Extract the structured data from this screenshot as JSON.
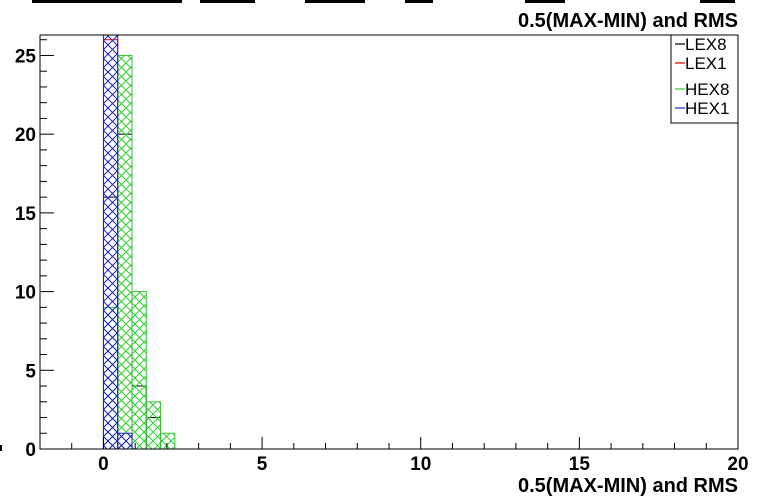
{
  "chart_data": {
    "type": "bar",
    "title": "",
    "top_label": "0.5(MAX-MIN) and RMS",
    "xlabel": "0.5(MAX-MIN) and RMS",
    "ylabel": "",
    "xlim": [
      -2,
      20
    ],
    "ylim": [
      0,
      26.3
    ],
    "bin_width": 0.45,
    "xticks": [
      0,
      5,
      10,
      15,
      20
    ],
    "xtick_labels": [
      "0",
      "5",
      "10",
      "15",
      "20"
    ],
    "yticks": [
      5,
      10,
      15,
      20,
      25
    ],
    "ytick_labels": [
      "5",
      "10",
      "15",
      "20",
      "25"
    ],
    "grid": false,
    "legend_position": "top-right",
    "series": [
      {
        "name": "LEX8",
        "color": "#000000",
        "hatched": false,
        "bin_edges": [
          0,
          0.45,
          0.9,
          1.35,
          1.8
        ],
        "values": [
          16,
          20,
          4,
          2
        ]
      },
      {
        "name": "LEX1",
        "color": "#e00000",
        "hatched": false,
        "bin_edges": [
          0,
          0.45
        ],
        "values": [
          26
        ]
      },
      {
        "name": "HEX8",
        "color": "#33cc33",
        "hatched": true,
        "bin_edges": [
          0,
          0.45,
          0.9,
          1.35,
          1.8,
          2.25
        ],
        "values": [
          9,
          25,
          10,
          3,
          1
        ]
      },
      {
        "name": "HEX1",
        "color": "#2222cc",
        "hatched": true,
        "bin_edges": [
          0,
          0.45,
          0.9
        ],
        "values": [
          27,
          1
        ]
      }
    ]
  }
}
